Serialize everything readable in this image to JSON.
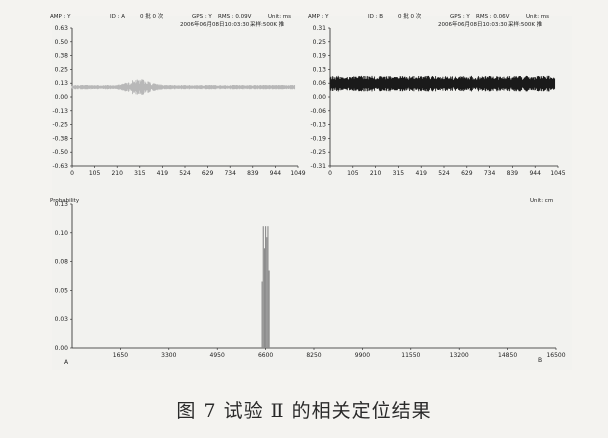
{
  "caption": "图 7   试验 Ⅱ 的相关定位结果",
  "chart_data": [
    {
      "type": "line",
      "header": {
        "amp": "AMP : Y",
        "id": "ID : A",
        "counts": "0 批  0 次",
        "gps": "GPS : Y",
        "rms": "RMS : 0.09V",
        "unit": "Unit: ms",
        "datetime": "2006年06月08日10:03:30",
        "rate": "采样:500K 推"
      },
      "series_color": "#b8b8b8",
      "x_ticks": [
        "0",
        "105",
        "210",
        "315",
        "419",
        "524",
        "629",
        "734",
        "839",
        "944",
        "1049"
      ],
      "y_ticks": [
        "0.63",
        "0.50",
        "0.38",
        "0.25",
        "0.13",
        "0.00",
        "-0.13",
        "-0.25",
        "-0.38",
        "-0.50",
        "-0.63"
      ],
      "xlim": [
        0,
        1049
      ],
      "ylim": [
        -0.63,
        0.63
      ],
      "signal": {
        "baseline": 0.09,
        "noise_amplitude": 0.02,
        "burst_range": [
          210,
          420
        ],
        "burst_amplitude": 0.07
      }
    },
    {
      "type": "line",
      "header": {
        "amp": "AMP : Y",
        "id": "ID : B",
        "counts": "0 批  0 次",
        "gps": "GPS : Y",
        "rms": "RMS : 0.06V",
        "unit": "Unit: ms",
        "datetime": "2006年06月08日10:03:30",
        "rate": "采样:500K 推"
      },
      "series_color": "#1a1a1a",
      "x_ticks": [
        "0",
        "105",
        "210",
        "315",
        "419",
        "524",
        "629",
        "734",
        "839",
        "944",
        "1045"
      ],
      "y_ticks": [
        "0.31",
        "0.25",
        "0.19",
        "0.13",
        "0.06",
        "0.00",
        "-0.06",
        "-0.13",
        "-0.19",
        "-0.25",
        "-0.31"
      ],
      "xlim": [
        0,
        1045
      ],
      "ylim": [
        -0.31,
        0.31
      ],
      "signal": {
        "baseline": 0.06,
        "noise_amplitude": 0.035
      }
    },
    {
      "type": "bar",
      "title": "Probability",
      "unit": "Unit: cm",
      "series_color": "#8a8a8a",
      "x_ticks": [
        "1650",
        "3300",
        "4950",
        "6600",
        "8250",
        "9900",
        "11550",
        "13200",
        "14850",
        "16500"
      ],
      "x_start_label": "A",
      "x_end_label": "B",
      "y_ticks": [
        "0.13",
        "0.10",
        "0.08",
        "0.05",
        "0.03",
        "0.00"
      ],
      "xlim": [
        0,
        16500
      ],
      "ylim": [
        0,
        0.13
      ],
      "peak": {
        "x": [
          6480,
          6520,
          6560,
          6600,
          6640,
          6680,
          6720
        ],
        "values": [
          0.06,
          0.11,
          0.09,
          0.11,
          0.1,
          0.11,
          0.07
        ]
      }
    }
  ]
}
